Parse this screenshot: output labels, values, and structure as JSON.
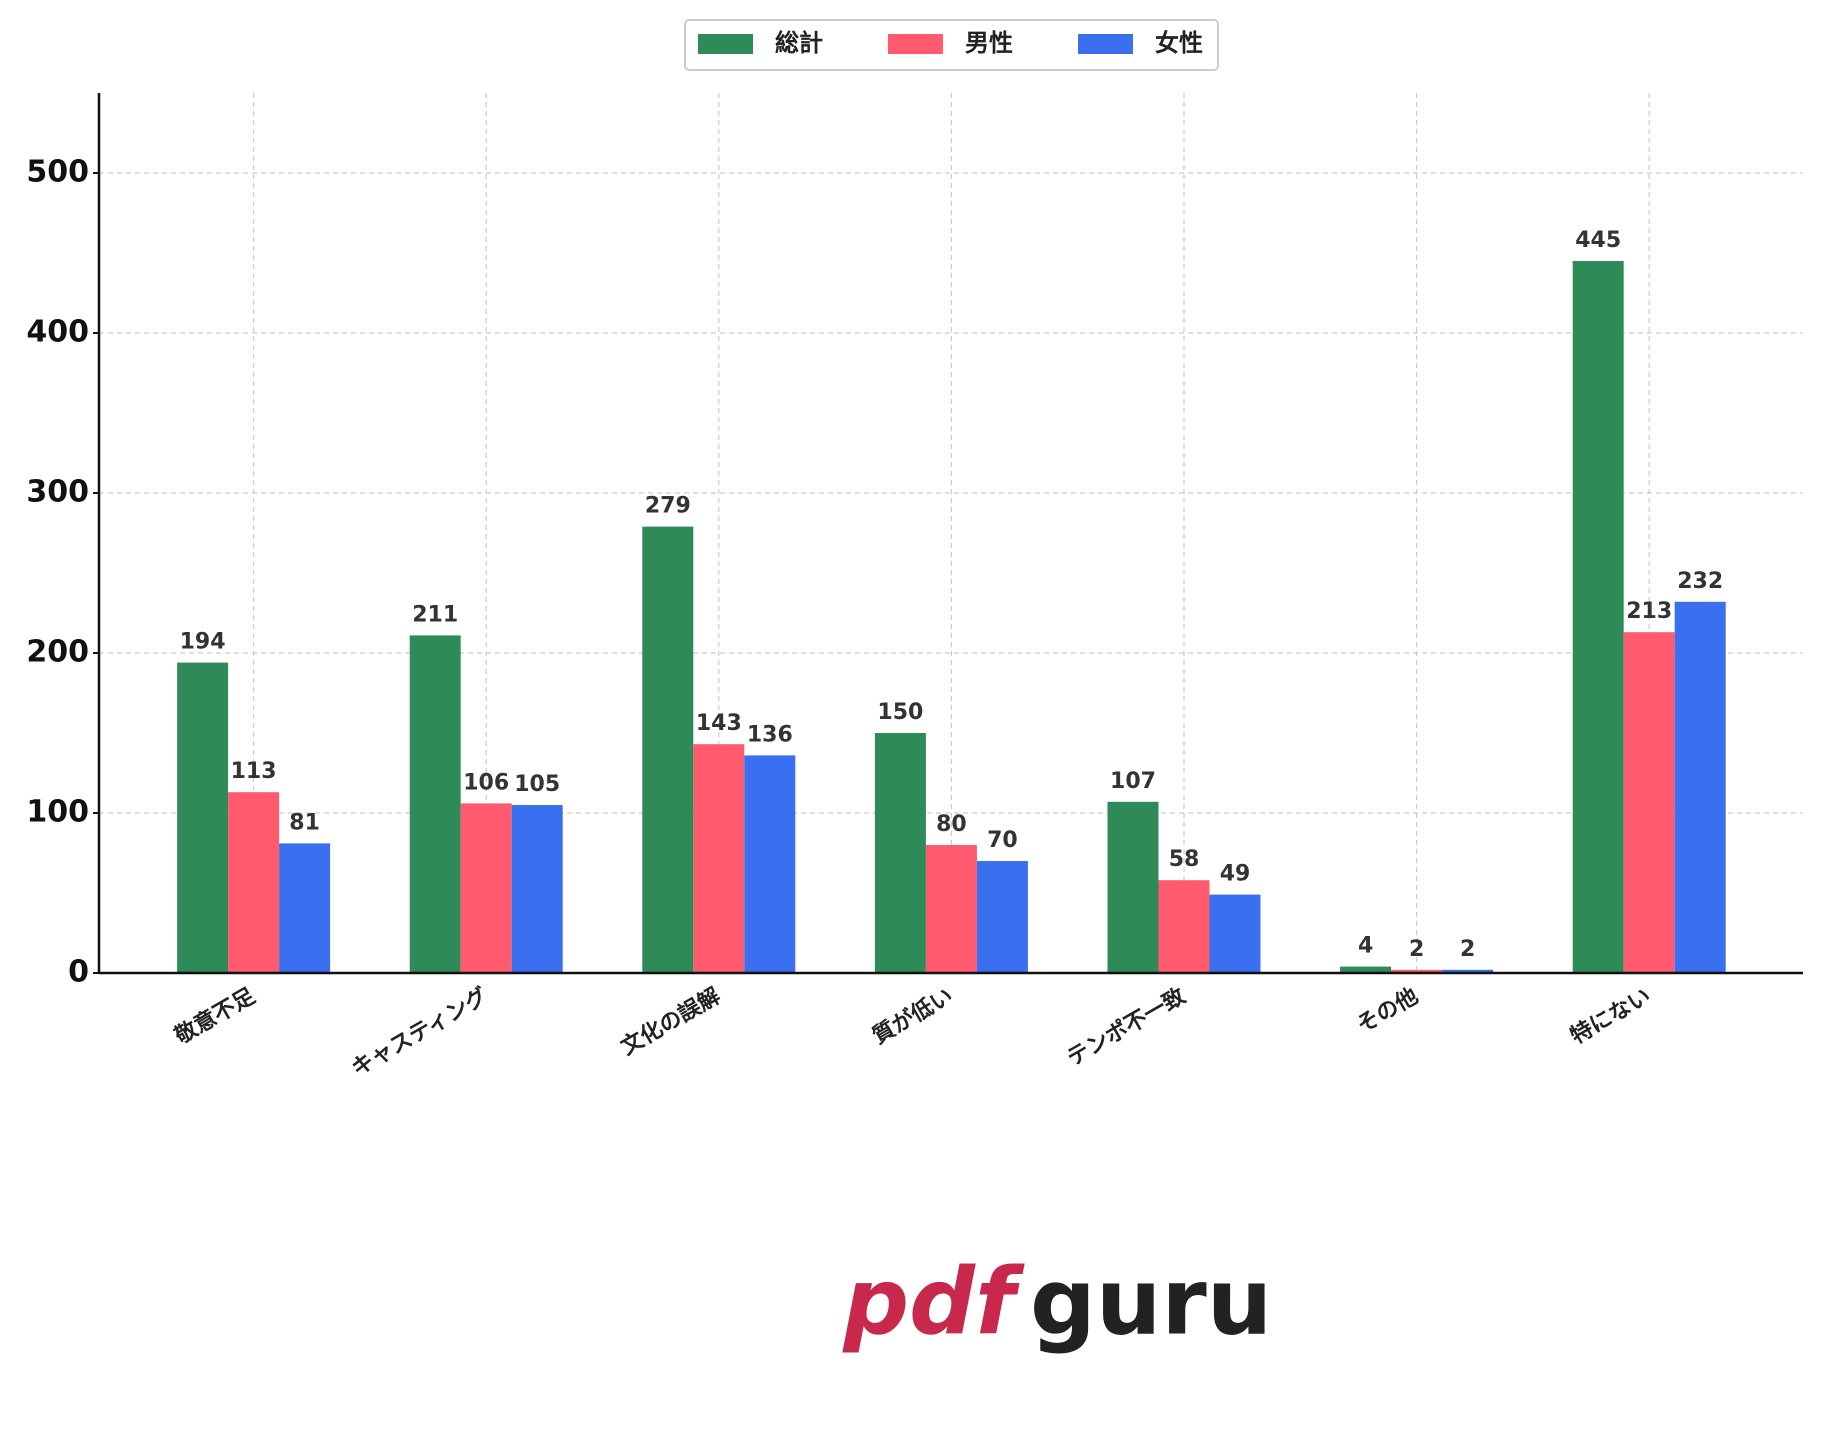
{
  "chart_data": {
    "type": "bar",
    "categories": [
      "敬意不足",
      "キャスティング",
      "文化の誤解",
      "質が低い",
      "テンポ不一致",
      "その他",
      "特にない"
    ],
    "series": [
      {
        "name": "総計",
        "color": "#2e8b57",
        "values": [
          194,
          211,
          279,
          150,
          107,
          4,
          445
        ]
      },
      {
        "name": "男性",
        "color": "#ff5a6e",
        "values": [
          113,
          106,
          143,
          80,
          58,
          2,
          213
        ]
      },
      {
        "name": "女性",
        "color": "#3a6ff0",
        "values": [
          81,
          105,
          136,
          70,
          49,
          2,
          232
        ]
      }
    ],
    "ylim": [
      0,
      550
    ],
    "yticks": [
      0,
      100,
      200,
      300,
      400,
      500
    ],
    "grid": true,
    "legend": "top"
  },
  "watermark": {
    "left": "pdf",
    "right": "guru"
  }
}
